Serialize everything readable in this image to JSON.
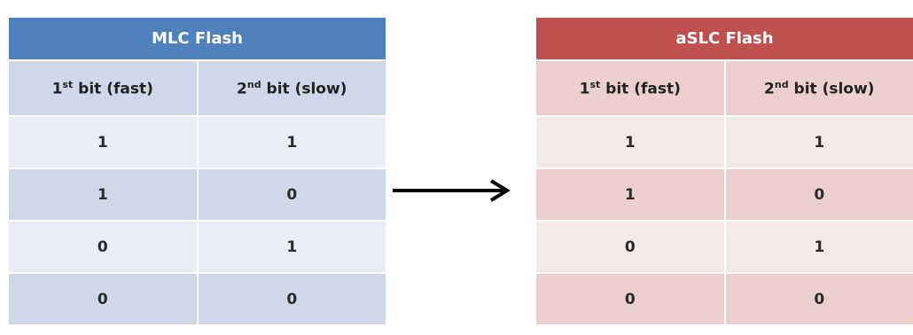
{
  "mlc": {
    "title": "MLC Flash",
    "col1": {
      "base": "1",
      "sup": "st",
      "rest": " bit (fast)"
    },
    "col2": {
      "base": "2",
      "sup": "nd",
      "rest": " bit (slow)"
    },
    "rows": [
      [
        "1",
        "1"
      ],
      [
        "1",
        "0"
      ],
      [
        "0",
        "1"
      ],
      [
        "0",
        "0"
      ]
    ]
  },
  "aslc": {
    "title": "aSLC Flash",
    "col1": {
      "base": "1",
      "sup": "st",
      "rest": " bit (fast)"
    },
    "col2": {
      "base": "2",
      "sup": "nd",
      "rest": " bit (slow)"
    },
    "rows": [
      [
        "1",
        "1"
      ],
      [
        "1",
        "0"
      ],
      [
        "0",
        "1"
      ],
      [
        "0",
        "0"
      ]
    ],
    "highlight_color": "#d11b1b"
  },
  "colors": {
    "mlc_title": "#4f81bd",
    "aslc_title": "#c0504d",
    "arrow": "#000000"
  }
}
